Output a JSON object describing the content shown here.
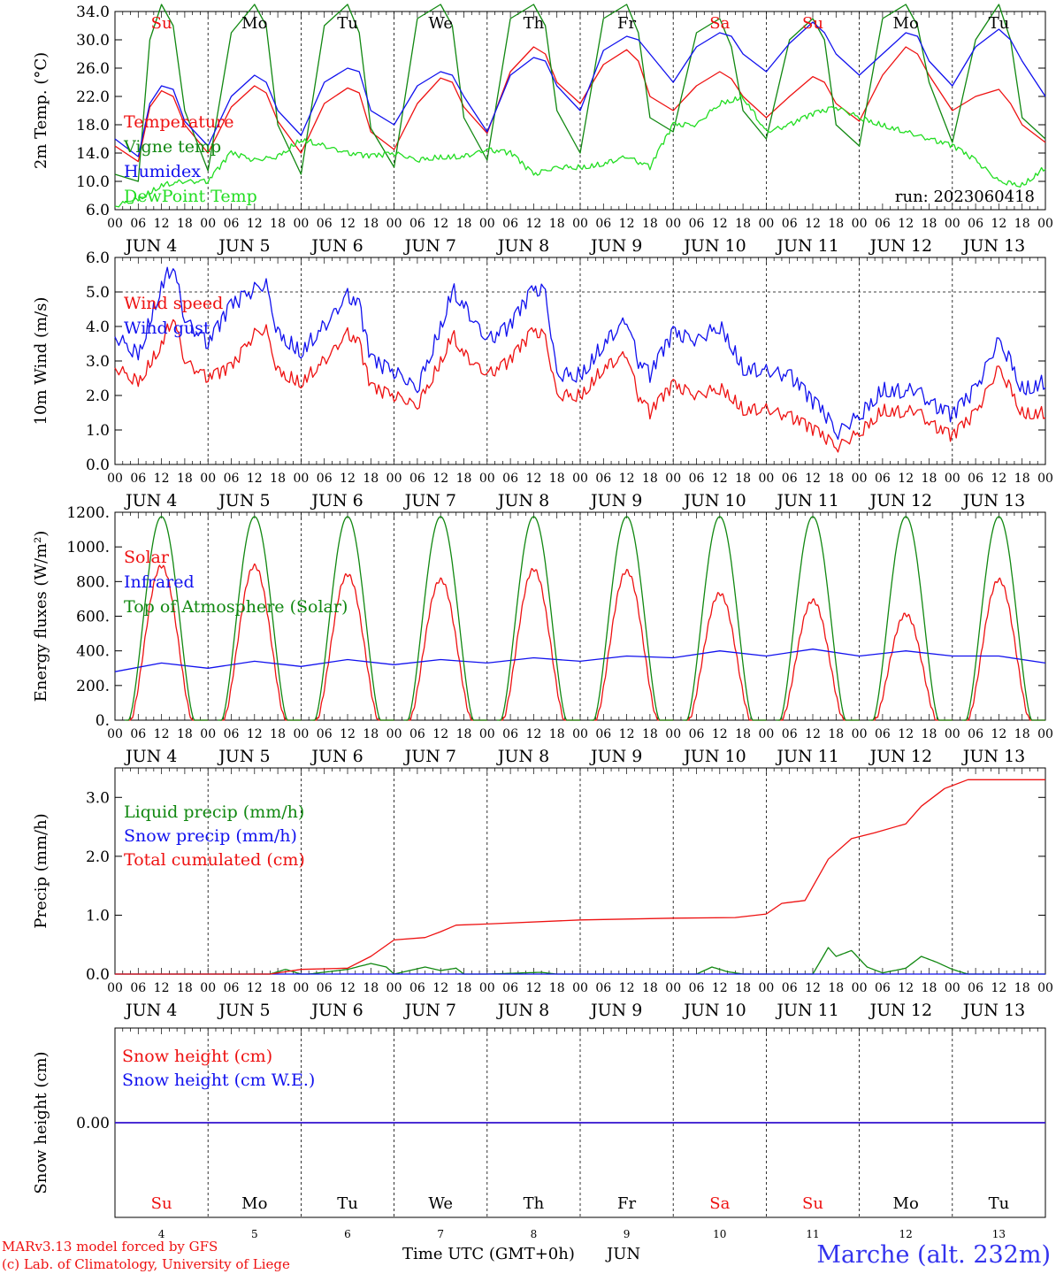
{
  "colors": {
    "red": "#ee1111",
    "green": "#118811",
    "blue": "#1111ee",
    "lightgreen": "#22dd22",
    "purple": "#7b2aa8",
    "black": "#000000"
  },
  "days": [
    {
      "date": "JUN   4",
      "dow": "Su",
      "num": "4",
      "weekend": true
    },
    {
      "date": "JUN   5",
      "dow": "Mo",
      "num": "5",
      "weekend": false
    },
    {
      "date": "JUN   6",
      "dow": "Tu",
      "num": "6",
      "weekend": false
    },
    {
      "date": "JUN   7",
      "dow": "We",
      "num": "7",
      "weekend": false
    },
    {
      "date": "JUN   8",
      "dow": "Th",
      "num": "8",
      "weekend": false
    },
    {
      "date": "JUN   9",
      "dow": "Fr",
      "num": "9",
      "weekend": false
    },
    {
      "date": "JUN  10",
      "dow": "Sa",
      "num": "10",
      "weekend": true
    },
    {
      "date": "JUN  11",
      "dow": "Su",
      "num": "11",
      "weekend": true
    },
    {
      "date": "JUN  12",
      "dow": "Mo",
      "num": "12",
      "weekend": false
    },
    {
      "date": "JUN  13",
      "dow": "Tu",
      "num": "13",
      "weekend": false
    }
  ],
  "hour_ticks": [
    "00",
    "06",
    "12",
    "18"
  ],
  "hour_tick_end": "00",
  "footer": {
    "model_line": "MARv3.13 model forced by GFS",
    "copyright_line": "(c) Lab. of Climatology, University of Liege",
    "xlabel": "Time UTC (GMT+0h)",
    "month": "JUN",
    "station": "Marche (alt. 232m)"
  },
  "chart_data": [
    {
      "id": "temp",
      "type": "line",
      "ylabel": "2m Temp. (°C)",
      "ylim": [
        6.0,
        34.0
      ],
      "yticks": [
        "6.0",
        "10.0",
        "14.0",
        "18.0",
        "22.0",
        "26.0",
        "30.0",
        "34.0"
      ],
      "ytick_values": [
        6,
        10,
        14,
        18,
        22,
        26,
        30,
        34
      ],
      "annotation": "run: 2023060418",
      "xlim_hours": [
        0,
        240
      ],
      "series": [
        {
          "name": "Temperature",
          "color": "red",
          "x": [
            0,
            6,
            9,
            12,
            15,
            18,
            24,
            30,
            36,
            39,
            42,
            48,
            54,
            60,
            63,
            66,
            72,
            78,
            84,
            87,
            90,
            96,
            102,
            108,
            111,
            114,
            120,
            126,
            132,
            135,
            138,
            144,
            150,
            156,
            159,
            162,
            168,
            174,
            180,
            183,
            186,
            192,
            198,
            204,
            207,
            210,
            216,
            222,
            228,
            231,
            234,
            240
          ],
          "y": [
            15.0,
            12.8,
            20.5,
            22.8,
            22.0,
            18.0,
            14.0,
            20.5,
            23.5,
            22.5,
            18.5,
            14.0,
            21.0,
            23.2,
            22.5,
            17.0,
            14.5,
            21.0,
            24.6,
            24.0,
            20.5,
            16.8,
            25.5,
            29.0,
            28.0,
            24.0,
            21.0,
            26.5,
            28.6,
            27.0,
            22.0,
            20.0,
            23.5,
            25.5,
            24.5,
            22.0,
            19.0,
            22.0,
            24.8,
            24.0,
            21.0,
            18.5,
            25.0,
            29.0,
            28.0,
            25.0,
            20.0,
            22.0,
            23.0,
            21.0,
            18.0,
            15.5
          ]
        },
        {
          "name": "Vigne temp",
          "color": "green",
          "x": [
            0,
            6,
            9,
            12,
            15,
            18,
            24,
            30,
            36,
            39,
            42,
            48,
            54,
            60,
            63,
            66,
            72,
            78,
            84,
            87,
            90,
            96,
            102,
            108,
            111,
            114,
            120,
            126,
            132,
            135,
            138,
            144,
            150,
            156,
            159,
            162,
            168,
            174,
            180,
            183,
            186,
            192,
            198,
            204,
            207,
            210,
            216,
            222,
            228,
            231,
            234,
            240
          ],
          "y": [
            11.0,
            10.0,
            30.0,
            35.0,
            32.0,
            20.0,
            11.5,
            31.0,
            35.0,
            32.0,
            18.0,
            11.0,
            32.0,
            35.0,
            31.0,
            17.5,
            12.0,
            33.0,
            35.0,
            32.0,
            19.0,
            13.0,
            33.0,
            35.0,
            32.0,
            20.0,
            14.0,
            33.0,
            35.0,
            31.0,
            19.0,
            17.0,
            31.0,
            33.0,
            29.0,
            20.0,
            16.0,
            30.0,
            33.0,
            30.0,
            18.0,
            15.0,
            33.0,
            35.0,
            32.0,
            24.0,
            15.5,
            30.0,
            35.0,
            30.0,
            19.0,
            16.0
          ]
        },
        {
          "name": "Humidex",
          "color": "blue",
          "x": [
            0,
            6,
            9,
            12,
            15,
            18,
            24,
            30,
            36,
            39,
            42,
            48,
            54,
            60,
            63,
            66,
            72,
            78,
            84,
            87,
            90,
            96,
            102,
            108,
            111,
            114,
            120,
            126,
            132,
            135,
            138,
            144,
            150,
            156,
            159,
            162,
            168,
            174,
            180,
            183,
            186,
            192,
            198,
            204,
            207,
            210,
            216,
            222,
            228,
            231,
            234,
            240
          ],
          "y": [
            16.0,
            13.5,
            21.0,
            23.5,
            23.0,
            18.5,
            15.0,
            22.0,
            25.0,
            24.0,
            20.0,
            16.5,
            24.0,
            26.0,
            25.5,
            20.0,
            18.0,
            23.5,
            25.5,
            25.0,
            22.0,
            17.0,
            25.0,
            27.5,
            27.0,
            23.5,
            20.0,
            28.5,
            30.5,
            30.0,
            28.0,
            24.0,
            29.0,
            31.0,
            30.5,
            28.0,
            25.5,
            29.5,
            32.5,
            31.0,
            28.0,
            25.0,
            28.0,
            31.0,
            30.5,
            27.0,
            23.5,
            29.0,
            31.5,
            30.0,
            27.0,
            22.0
          ]
        },
        {
          "name": "DewPoint Temp",
          "color": "lightgreen",
          "x": [
            0,
            6,
            12,
            18,
            24,
            30,
            36,
            42,
            48,
            54,
            60,
            66,
            72,
            78,
            84,
            90,
            96,
            102,
            108,
            114,
            120,
            126,
            132,
            138,
            144,
            150,
            156,
            162,
            168,
            174,
            180,
            186,
            192,
            198,
            204,
            210,
            216,
            222,
            228,
            234,
            240
          ],
          "y": [
            6.5,
            7.5,
            9.5,
            10.0,
            10.0,
            14.0,
            13.0,
            13.5,
            16.0,
            15.0,
            14.0,
            13.5,
            14.0,
            13.0,
            13.5,
            13.5,
            14.5,
            14.0,
            11.0,
            12.0,
            12.0,
            12.5,
            13.5,
            12.0,
            18.0,
            18.0,
            21.0,
            22.0,
            17.0,
            18.0,
            19.5,
            20.5,
            19.0,
            18.0,
            17.0,
            16.0,
            15.0,
            13.0,
            10.0,
            9.5,
            12.0
          ]
        }
      ]
    },
    {
      "id": "wind",
      "type": "line",
      "ylabel": "10m Wind (m/s)",
      "ylim": [
        0.0,
        6.0
      ],
      "yticks": [
        "0.0",
        "1.0",
        "2.0",
        "3.0",
        "4.0",
        "5.0",
        "6.0"
      ],
      "ytick_values": [
        0,
        1,
        2,
        3,
        4,
        5,
        6
      ],
      "xlim_hours": [
        0,
        240
      ],
      "series": [
        {
          "name": "Wind speed",
          "color": "red",
          "x": [
            0,
            6,
            12,
            15,
            18,
            24,
            30,
            36,
            39,
            42,
            48,
            54,
            60,
            63,
            66,
            72,
            78,
            84,
            87,
            90,
            96,
            102,
            108,
            111,
            114,
            120,
            126,
            132,
            135,
            138,
            144,
            150,
            156,
            159,
            162,
            168,
            174,
            180,
            183,
            186,
            192,
            198,
            204,
            207,
            210,
            216,
            222,
            228,
            231,
            234,
            240
          ],
          "y": [
            2.8,
            2.4,
            3.5,
            4.3,
            3.0,
            2.5,
            2.8,
            3.8,
            3.9,
            2.7,
            2.4,
            3.0,
            3.8,
            3.5,
            2.2,
            2.0,
            1.7,
            3.0,
            3.8,
            3.2,
            2.6,
            3.0,
            3.9,
            3.7,
            2.0,
            2.0,
            2.8,
            3.2,
            2.0,
            1.5,
            2.3,
            2.0,
            2.2,
            2.0,
            1.6,
            1.6,
            1.4,
            1.0,
            0.8,
            0.5,
            0.9,
            1.6,
            1.5,
            1.6,
            1.2,
            0.8,
            1.5,
            2.8,
            2.2,
            1.5,
            1.5
          ]
        },
        {
          "name": "Wind gust",
          "color": "blue",
          "x": [
            0,
            6,
            12,
            15,
            18,
            24,
            30,
            36,
            39,
            42,
            48,
            54,
            60,
            63,
            66,
            72,
            78,
            84,
            87,
            90,
            96,
            102,
            108,
            111,
            114,
            120,
            126,
            132,
            135,
            138,
            144,
            150,
            156,
            159,
            162,
            168,
            174,
            180,
            183,
            186,
            192,
            198,
            204,
            207,
            210,
            216,
            222,
            228,
            231,
            234,
            240
          ],
          "y": [
            3.7,
            3.2,
            5.2,
            5.8,
            4.2,
            3.5,
            4.6,
            5.1,
            5.2,
            3.8,
            3.3,
            4.0,
            4.9,
            4.6,
            3.0,
            2.7,
            2.2,
            4.0,
            5.1,
            4.6,
            3.6,
            4.0,
            5.1,
            5.0,
            2.6,
            2.6,
            3.5,
            4.2,
            3.0,
            2.6,
            3.8,
            3.6,
            4.0,
            3.5,
            2.8,
            2.7,
            2.6,
            1.8,
            1.5,
            0.9,
            1.4,
            2.2,
            2.1,
            2.2,
            1.8,
            1.4,
            2.2,
            3.6,
            3.0,
            2.2,
            2.4
          ]
        }
      ]
    },
    {
      "id": "energy",
      "type": "line",
      "ylabel": "Energy fluxes (W/m²)",
      "ylim": [
        0,
        1200
      ],
      "yticks": [
        "0.",
        "200.",
        "400.",
        "600.",
        "800.",
        "1000.",
        "1200."
      ],
      "ytick_values": [
        0,
        200,
        400,
        600,
        800,
        1000,
        1200
      ],
      "xlim_hours": [
        0,
        240
      ],
      "series": [
        {
          "name": "Solar",
          "color": "red",
          "kind": "diurnal",
          "peak_hour": 12,
          "half_width_hours": 8,
          "peaks": [
            890,
            890,
            840,
            810,
            870,
            860,
            730,
            690,
            610,
            810
          ]
        },
        {
          "name": "Infrared",
          "color": "blue",
          "x": [
            0,
            12,
            24,
            36,
            48,
            60,
            72,
            84,
            96,
            108,
            120,
            132,
            144,
            156,
            168,
            180,
            192,
            204,
            216,
            228,
            240
          ],
          "y": [
            280,
            330,
            300,
            340,
            310,
            350,
            320,
            350,
            330,
            360,
            340,
            370,
            360,
            400,
            370,
            410,
            370,
            400,
            370,
            370,
            330
          ]
        },
        {
          "name": "Top of Atmosphere (Solar)",
          "color": "green",
          "kind": "diurnal",
          "peak_hour": 12,
          "half_width_hours": 8.5,
          "peaks": [
            1175,
            1175,
            1175,
            1175,
            1175,
            1175,
            1175,
            1175,
            1175,
            1175
          ]
        }
      ]
    },
    {
      "id": "precip",
      "type": "line",
      "ylabel": "Precip (mm/h)",
      "ylim": [
        0.0,
        3.5
      ],
      "yticks": [
        "0.0",
        "1.0",
        "2.0",
        "3.0"
      ],
      "ytick_values": [
        0,
        1,
        2,
        3
      ],
      "xlim_hours": [
        0,
        240
      ],
      "series": [
        {
          "name": "Liquid precip (mm/h)",
          "color": "green",
          "x": [
            0,
            40,
            44,
            48,
            50,
            60,
            66,
            70,
            72,
            80,
            84,
            88,
            90,
            96,
            110,
            114,
            118,
            150,
            154,
            158,
            162,
            180,
            184,
            186,
            190,
            194,
            198,
            204,
            208,
            212,
            216,
            220,
            240
          ],
          "y": [
            0,
            0,
            0.08,
            0,
            0,
            0.08,
            0.18,
            0.12,
            0,
            0.12,
            0.06,
            0.1,
            0,
            0,
            0.03,
            0,
            0,
            0,
            0.12,
            0.04,
            0,
            0,
            0.45,
            0.3,
            0.4,
            0.12,
            0.02,
            0.1,
            0.3,
            0.2,
            0.08,
            0,
            0
          ]
        },
        {
          "name": "Snow precip (mm/h)",
          "color": "blue",
          "x": [
            0,
            240
          ],
          "y": [
            0,
            0
          ]
        },
        {
          "name": "Total cumulated (cm)",
          "color": "red",
          "x": [
            0,
            40,
            48,
            60,
            66,
            72,
            80,
            84,
            88,
            96,
            120,
            144,
            160,
            168,
            172,
            178,
            184,
            190,
            196,
            204,
            208,
            214,
            220,
            240
          ],
          "y": [
            0,
            0,
            0.08,
            0.1,
            0.3,
            0.58,
            0.62,
            0.72,
            0.83,
            0.85,
            0.92,
            0.95,
            0.96,
            1.02,
            1.2,
            1.25,
            1.95,
            2.3,
            2.4,
            2.55,
            2.85,
            3.15,
            3.3,
            3.3
          ]
        }
      ]
    },
    {
      "id": "snow",
      "type": "line",
      "ylabel": "Snow height (cm)",
      "ylim": [
        -1,
        1
      ],
      "yticks": [
        "0.00"
      ],
      "ytick_values": [
        0
      ],
      "xlim_hours": [
        0,
        240
      ],
      "series": [
        {
          "name": "Snow height (cm)",
          "color": "red",
          "x": [
            0,
            240
          ],
          "y": [
            0,
            0
          ]
        },
        {
          "name": "Snow height (cm W.E.)",
          "color": "blue",
          "x": [
            0,
            240
          ],
          "y": [
            0,
            0
          ]
        }
      ]
    }
  ]
}
